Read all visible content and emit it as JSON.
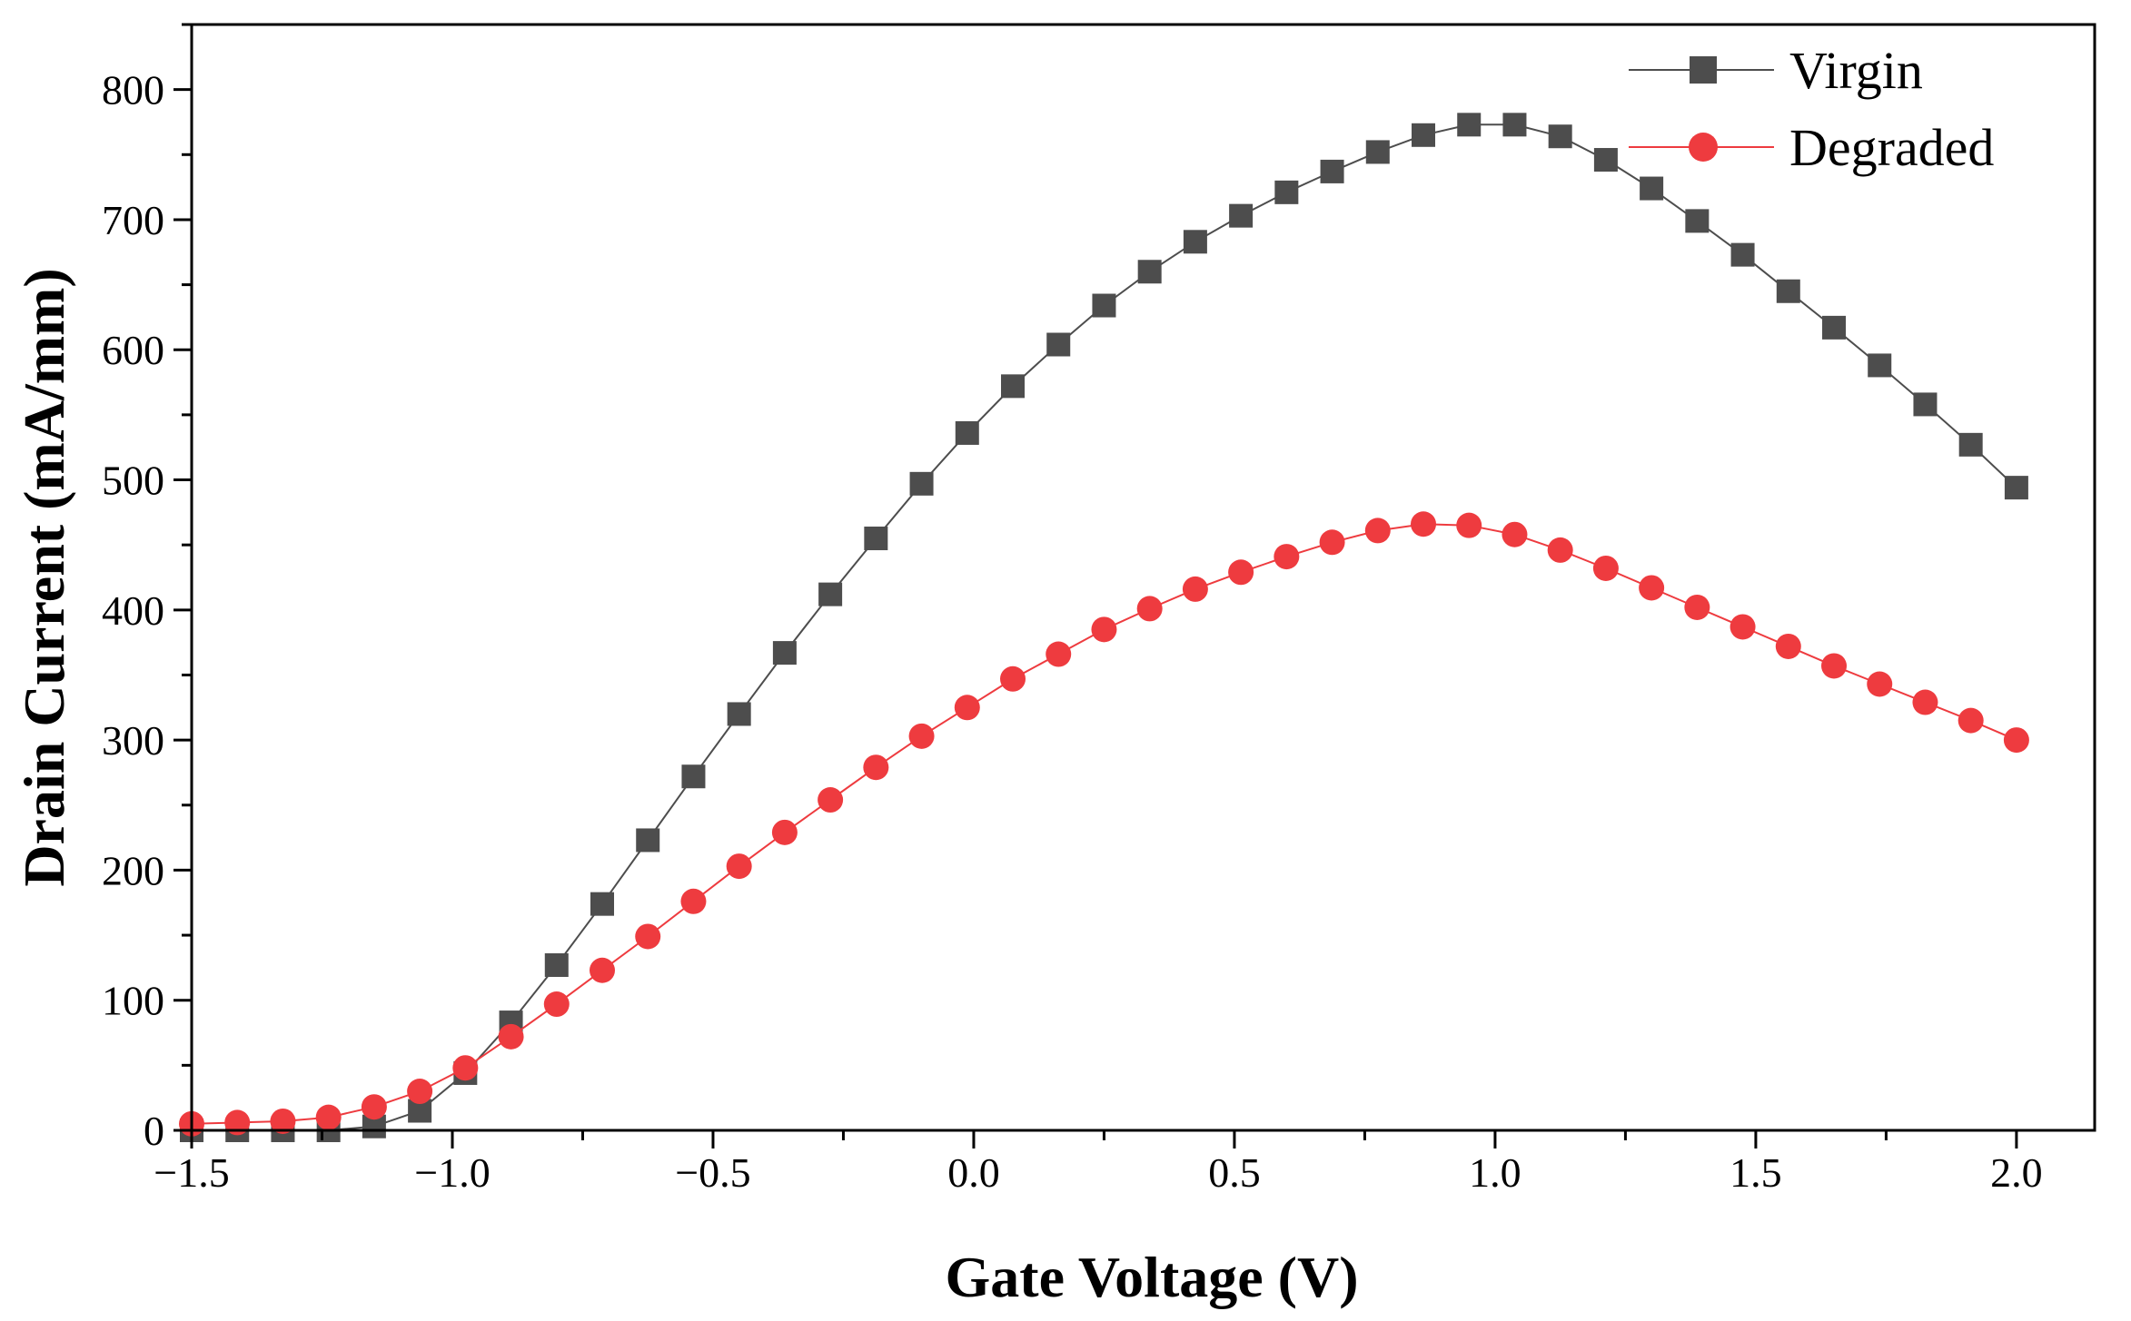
{
  "chart_data": {
    "type": "line",
    "title": "",
    "xlabel": "Gate Voltage (V)",
    "ylabel": "Drain Current (mA/mm)",
    "xlim": [
      -1.5,
      2.15
    ],
    "ylim": [
      0,
      850
    ],
    "xticks": [
      -1.5,
      -1.0,
      -0.5,
      0.0,
      0.5,
      1.0,
      1.5,
      2.0
    ],
    "xtick_labels": [
      "−1.5",
      "−1.0",
      "−0.5",
      "0.0",
      "0.5",
      "1.0",
      "1.5",
      "2.0"
    ],
    "yticks": [
      0,
      100,
      200,
      300,
      400,
      500,
      600,
      700,
      800
    ],
    "ytick_labels": [
      "0",
      "100",
      "200",
      "300",
      "400",
      "500",
      "600",
      "700",
      "800"
    ],
    "grid": false,
    "legend_position": "top-right",
    "x": [
      -1.5,
      -1.4125,
      -1.325,
      -1.2375,
      -1.15,
      -1.0625,
      -0.975,
      -0.8875,
      -0.8,
      -0.7125,
      -0.625,
      -0.5375,
      -0.45,
      -0.3625,
      -0.275,
      -0.1875,
      -0.1,
      -0.0125,
      0.075,
      0.1625,
      0.25,
      0.3375,
      0.425,
      0.5125,
      0.6,
      0.6875,
      0.775,
      0.8625,
      0.95,
      1.0375,
      1.125,
      1.2125,
      1.3,
      1.3875,
      1.475,
      1.5625,
      1.65,
      1.7375,
      1.825,
      1.9125,
      2.0
    ],
    "series": [
      {
        "name": "Virgin",
        "color": "#4d4d4d",
        "marker": "square",
        "values": [
          0,
          0,
          0,
          0,
          3,
          15,
          44,
          83,
          127,
          174,
          223,
          272,
          320,
          367,
          412,
          455,
          497,
          536,
          572,
          604,
          634,
          660,
          683,
          703,
          721,
          737,
          752,
          765,
          773,
          773,
          764,
          746,
          724,
          699,
          673,
          645,
          617,
          588,
          558,
          527,
          494
        ]
      },
      {
        "name": "Degraded",
        "color": "#ee3b3f",
        "marker": "circle",
        "values": [
          5,
          6,
          7,
          10,
          18,
          30,
          48,
          72,
          97,
          123,
          149,
          176,
          203,
          229,
          254,
          279,
          303,
          325,
          347,
          366,
          385,
          401,
          416,
          429,
          441,
          452,
          461,
          466,
          465,
          458,
          446,
          432,
          417,
          402,
          387,
          372,
          357,
          343,
          329,
          315,
          300
        ]
      }
    ]
  }
}
